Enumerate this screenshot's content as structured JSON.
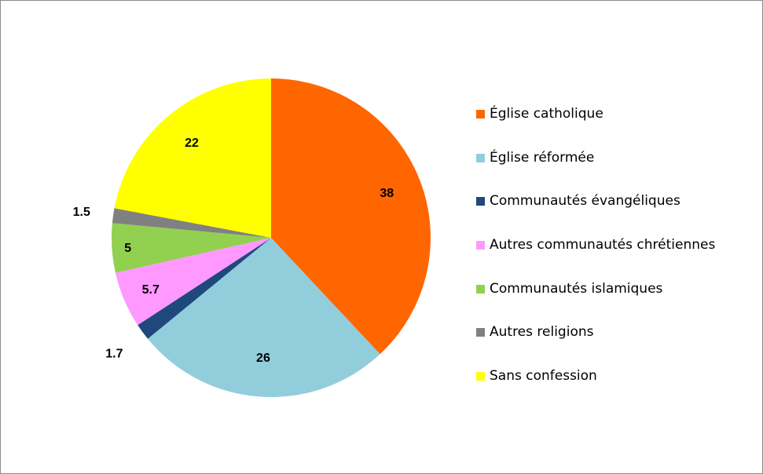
{
  "chart_data": {
    "type": "pie",
    "title": "",
    "legend_position": "right",
    "slices": [
      {
        "name": "Église catholique",
        "value": 38,
        "label": "38",
        "color": "#FF6600"
      },
      {
        "name": "Église réformée",
        "value": 26,
        "label": "26",
        "color": "#92CDDC"
      },
      {
        "name": "Communautés évangéliques",
        "value": 1.7,
        "label": "1.7",
        "color": "#1F497D"
      },
      {
        "name": "Autres communautés chrétiennes",
        "value": 5.7,
        "label": "5.7",
        "color": "#FF99FF"
      },
      {
        "name": "Communautés islamiques",
        "value": 5,
        "label": "5",
        "color": "#92D050"
      },
      {
        "name": "Autres religions",
        "value": 1.5,
        "label": "1.5",
        "color": "#808080"
      },
      {
        "name": "Sans confession",
        "value": 22,
        "label": "22",
        "color": "#FFFF00"
      }
    ]
  }
}
